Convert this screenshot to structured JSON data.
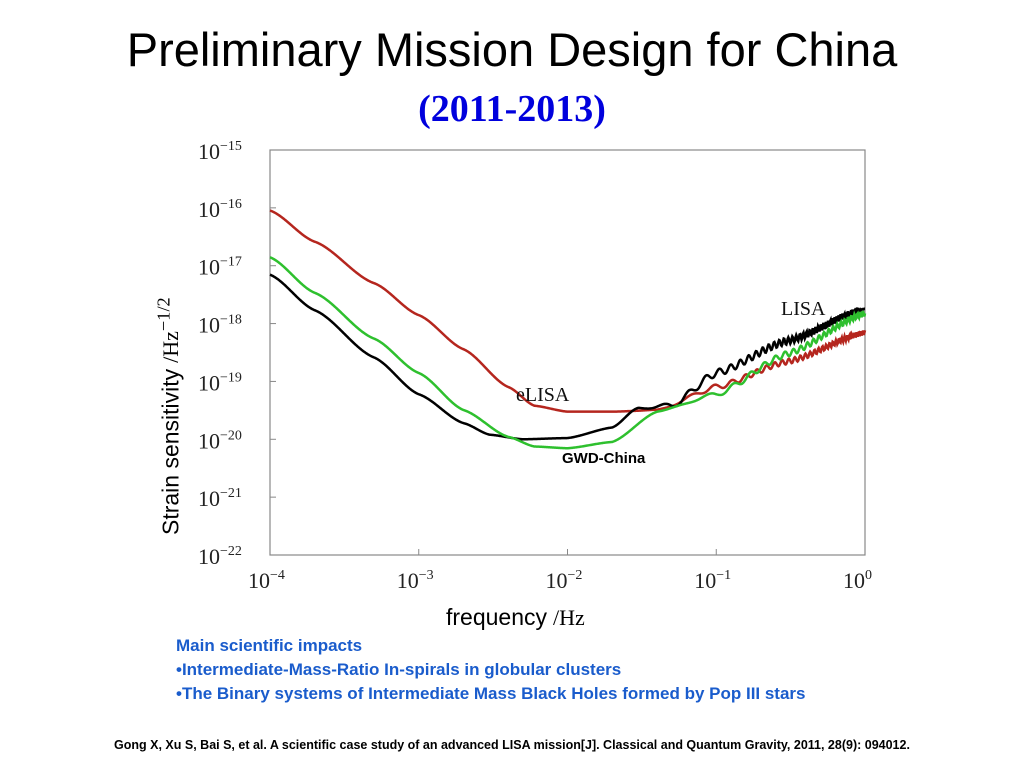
{
  "slide": {
    "title": "Preliminary Mission Design for China",
    "subtitle": "(2011-2013)",
    "impacts": {
      "heading": "Main scientific impacts",
      "items": [
        "•Intermediate-Mass-Ratio In-spirals in globular clusters",
        "•The Binary systems of Intermediate Mass Black Holes formed by Pop III stars"
      ]
    },
    "citation": "Gong X, Xu S, Bai S, et al. A scientific case study of an advanced LISA mission[J]. Classical and Quantum Gravity, 2011, 28(9): 094012."
  },
  "chart_data": {
    "type": "line",
    "xlabel": "frequency",
    "xlabel_unit": "/Hz",
    "ylabel": "Strain sensitivity",
    "ylabel_unit": "/Hz",
    "ylabel_unit_exp": "−1/2",
    "xscale": "log",
    "yscale": "log",
    "xlim": [
      0.0001,
      1.0
    ],
    "ylim": [
      1e-22,
      1e-15
    ],
    "x_ticks": [
      {
        "base": "10",
        "exp": "−4",
        "value": 0.0001
      },
      {
        "base": "10",
        "exp": "−3",
        "value": 0.001
      },
      {
        "base": "10",
        "exp": "−2",
        "value": 0.01
      },
      {
        "base": "10",
        "exp": "−1",
        "value": 0.1
      },
      {
        "base": "10",
        "exp": "0",
        "value": 1
      }
    ],
    "y_ticks": [
      {
        "base": "10",
        "exp": "−15",
        "value": 1e-15
      },
      {
        "base": "10",
        "exp": "−16",
        "value": 1e-16
      },
      {
        "base": "10",
        "exp": "−17",
        "value": 1e-17
      },
      {
        "base": "10",
        "exp": "−18",
        "value": 1e-18
      },
      {
        "base": "10",
        "exp": "−19",
        "value": 1e-19
      },
      {
        "base": "10",
        "exp": "−20",
        "value": 1e-20
      },
      {
        "base": "10",
        "exp": "−21",
        "value": 1e-21
      },
      {
        "base": "10",
        "exp": "−22",
        "value": 1e-22
      }
    ],
    "grid": false,
    "series": [
      {
        "name": "eLISA",
        "color": "#b5261e",
        "x": [
          0.0001,
          0.0002,
          0.0005,
          0.001,
          0.002,
          0.004,
          0.006,
          0.01,
          0.02,
          0.04,
          0.1,
          0.3,
          1.0
        ],
        "y": [
          9e-17,
          2.6e-17,
          5e-18,
          1.4e-18,
          3.6e-19,
          8e-20,
          3.8e-20,
          3e-20,
          3e-20,
          3.2e-20,
          8e-20,
          2.2e-19,
          7e-19
        ]
      },
      {
        "name": "LISA",
        "color": "#000000",
        "x": [
          0.0001,
          0.0002,
          0.0005,
          0.001,
          0.002,
          0.003,
          0.005,
          0.01,
          0.02,
          0.03,
          0.05,
          0.1,
          0.3,
          1.0
        ],
        "y": [
          7e-18,
          1.7e-18,
          2.6e-19,
          6e-20,
          1.9e-20,
          1.2e-20,
          1e-20,
          1.05e-20,
          1.6e-20,
          3.5e-20,
          3.8e-20,
          1.4e-19,
          5e-19,
          1.8e-18
        ]
      },
      {
        "name": "GWD-China",
        "color": "#2ec02e",
        "x": [
          0.0001,
          0.0002,
          0.0005,
          0.001,
          0.002,
          0.004,
          0.006,
          0.01,
          0.02,
          0.04,
          0.1,
          0.3,
          1.0
        ],
        "y": [
          1.4e-17,
          3.4e-18,
          5.5e-19,
          1.4e-19,
          3.2e-20,
          1.1e-20,
          7.5e-21,
          7e-21,
          9e-21,
          3e-20,
          6e-20,
          3e-19,
          1.5e-18
        ]
      }
    ],
    "annotations": {
      "elisa_label": "eLISA",
      "lisa_label": "LISA",
      "gwd_label": "GWD-China"
    }
  }
}
